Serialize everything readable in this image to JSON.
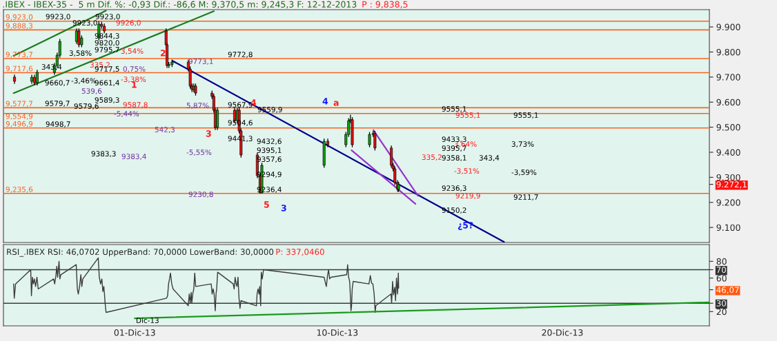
{
  "chart_data": [
    {
      "type": "candlestick",
      "title": ".IBEX - IBEX-35 -  5 m Dif. %: -0,93 Dif.: -86,6 M: 9,370,5 m: 9,245,3 F: 12-12-2013",
      "subtitle": "P : 9,838,5",
      "x": [
        "2013-11-25T15:48",
        "2013-11-26T10:11",
        "2013-11-26T13:05",
        "2013-11-26T15:58",
        "2013-11-27T10:22",
        "2013-11-27T13:15",
        "2013-11-27T16:08",
        "2013-11-28T09:56",
        "2013-11-28T12:29",
        "2013-11-28T15:23",
        "2013-11-29T09:46",
        "2013-11-29T12:39",
        "2013-11-29T15:33",
        "2013-12-02T09:26",
        "2013-12-02T10:27",
        "2013-12-02T12:24",
        "2013-12-02T15:48",
        "2013-12-03T09:10",
        "2013-12-03T11:08",
        "2013-12-03T13:05",
        "2013-12-03T14:57",
        "2013-12-03T16:54",
        "2013-12-04T10:22",
        "2013-12-04T12:19",
        "2013-12-04T13:51",
        "2013-12-04T16:08",
        "2013-12-05T10:32",
        "2013-12-05T13:25",
        "2013-12-05T15:23",
        "2013-12-05T17:20",
        "2013-12-06T10:42",
        "2013-12-06T13:41",
        "2013-12-06T15:33",
        "2013-12-09T09:56",
        "2013-12-09T13:51",
        "2013-12-10T09:10",
        "2013-12-10T12:04",
        "2013-12-10T14:01",
        "2013-12-10T15:58",
        "2013-12-11T10:22",
        "2013-12-11T14:11",
        "2013-12-11T16:08",
        "2013-12-12T09:36",
        "2013-12-12T11:33",
        "2013-12-12T13:25",
        "2013-12-12T16:19",
        "2013-12-12T17:20"
      ],
      "ohlc": [
        [
          9700,
          9710,
          9673,
          9683
        ],
        [
          9683,
          9709,
          9673,
          9699
        ],
        [
          9699,
          9709,
          9667,
          9677
        ],
        [
          9677,
          9729,
          9667,
          9719
        ],
        [
          9719,
          9756,
          9709,
          9746
        ],
        [
          9746,
          9797,
          9736,
          9787
        ],
        [
          9787,
          9852,
          9777,
          9842
        ],
        [
          9842,
          9894,
          9832,
          9884
        ],
        [
          9884,
          9894,
          9819,
          9829
        ],
        [
          9829,
          9866,
          9819,
          9856
        ],
        [
          9856,
          9923,
          9846,
          9911
        ],
        [
          9911,
          9921,
          9893,
          9903
        ],
        [
          9903,
          9913,
          9874,
          9884
        ],
        [
          9884,
          9894,
          9819,
          9829
        ],
        [
          9829,
          9839,
          9736,
          9746
        ],
        [
          9746,
          9760,
          9736,
          9750
        ],
        [
          9750,
          9770,
          9740,
          9760
        ],
        [
          9760,
          9770,
          9722,
          9732
        ],
        [
          9732,
          9742,
          9654,
          9664
        ],
        [
          9664,
          9674,
          9640,
          9650
        ],
        [
          9650,
          9674,
          9640,
          9664
        ],
        [
          9664,
          9674,
          9626,
          9636
        ],
        [
          9636,
          9646,
          9613,
          9623
        ],
        [
          9623,
          9633,
          9558,
          9568
        ],
        [
          9568,
          9578,
          9489,
          9499
        ],
        [
          9499,
          9578,
          9489,
          9568
        ],
        [
          9568,
          9578,
          9516,
          9526
        ],
        [
          9526,
          9578,
          9516,
          9568
        ],
        [
          9568,
          9578,
          9475,
          9485
        ],
        [
          9485,
          9495,
          9379,
          9389
        ],
        [
          9389,
          9399,
          9297,
          9307
        ],
        [
          9307,
          9317,
          9236,
          9238
        ],
        [
          9238,
          9358,
          9236,
          9348
        ],
        [
          9348,
          9454,
          9338,
          9444
        ],
        [
          9444,
          9454,
          9420,
          9430
        ],
        [
          9430,
          9481,
          9420,
          9471
        ],
        [
          9471,
          9536,
          9461,
          9526
        ],
        [
          9526,
          9550,
          9516,
          9530
        ],
        [
          9530,
          9540,
          9420,
          9430
        ],
        [
          9430,
          9481,
          9420,
          9471
        ],
        [
          9471,
          9485,
          9461,
          9475
        ],
        [
          9475,
          9485,
          9407,
          9417
        ],
        [
          9417,
          9427,
          9338,
          9348
        ],
        [
          9348,
          9358,
          9324,
          9334
        ],
        [
          9334,
          9344,
          9269,
          9279
        ],
        [
          9279,
          9289,
          9242,
          9252
        ],
        [
          9252,
          9282,
          9242,
          9272
        ]
      ],
      "series": [
        {
          "type": "line",
          "color": "#00008b",
          "x": [
            "2013-12-02T16:08",
            "2013-12-17T09:51"
          ],
          "values": [
            9765,
            9042
          ]
        },
        {
          "type": "line",
          "color": "#1e7a1e",
          "x": [
            "2013-11-25T14:47",
            "2013-11-29T17:15"
          ],
          "values": [
            9785,
            9965
          ]
        },
        {
          "type": "line",
          "color": "#1e7a1e",
          "x": [
            "2013-11-25T14:47",
            "2013-12-04T12:19"
          ],
          "values": [
            9636,
            9963
          ]
        },
        {
          "type": "line",
          "color": "#9932cc",
          "x": [
            "2013-12-10T15:12",
            "2013-12-13T11:18"
          ],
          "values": [
            9408,
            9194
          ]
        },
        {
          "type": "line",
          "color": "#9932cc",
          "x": [
            "2013-12-11T14:37",
            "2013-12-13T13:51"
          ],
          "values": [
            9488,
            9227
          ]
        }
      ],
      "ref_lines": [
        {
          "axis": "y",
          "value": 9923.0,
          "label": "9,923,0",
          "color": "#ff6020"
        },
        {
          "axis": "y",
          "value": 9888.3,
          "label": "9,888,3",
          "color": "#ff6020"
        },
        {
          "axis": "y",
          "value": 9773.7,
          "label": "9,773,7",
          "color": "#ff6020"
        },
        {
          "axis": "y",
          "value": 9717.6,
          "label": "9,717,6",
          "color": "#ff6020"
        },
        {
          "axis": "y",
          "value": 9577.7,
          "label": "9,577,7",
          "color": "#ff6020"
        },
        {
          "axis": "y",
          "value": 9554.9,
          "label": "9,554,9",
          "color": "#ff6020"
        },
        {
          "axis": "y",
          "value": 9496.9,
          "label": "9,496,9",
          "color": "#ff6020"
        },
        {
          "axis": "y",
          "value": 9235.6,
          "label": "9,235,6",
          "color": "#ff6020"
        }
      ],
      "annotations": [
        "9923,0",
        "9923,0",
        "9923,0",
        "9926,0",
        "9844,3",
        "9820,0",
        "9795,7",
        "3,58%",
        "3,54%",
        "335,2",
        "9717,5",
        "0,75%",
        "2",
        "9773,1",
        "9772,8",
        "343,4",
        "9660,7",
        "-3,46%",
        "9661,4",
        "-3,38%",
        "1",
        "539,6",
        "9579,7",
        "9579,6",
        "9589,3",
        "9587,8",
        "-5,44%",
        "5,87%",
        "9567,9",
        "4",
        "9559,9",
        "4",
        "a",
        "9504,6",
        "9498,7",
        "542,3",
        "3",
        "9441,3",
        "9432,6",
        "9395,1",
        "9357,6",
        "-5,55%",
        "9383,3",
        "9383,4",
        "9294,9",
        "9236,4",
        "9230,8",
        "5",
        "3",
        "9555,1",
        "9555,1",
        "9555,1",
        "9433,3",
        "3,64%",
        "3,73%",
        "9395,7",
        "335,2",
        "9358,1",
        "343,4",
        "-3,51%",
        "-3,59%",
        "9236,3",
        "9219,9",
        "9211,7",
        "9150,2",
        "¿5?"
      ],
      "xlim": [
        "2013-11-25T04:00",
        "2013-12-26T12:45"
      ],
      "ylim": [
        9040,
        9969
      ],
      "yticks": [
        {
          "value": 9100,
          "label": "9.100"
        },
        {
          "value": 9200,
          "label": "9.200"
        },
        {
          "value": 9300,
          "label": "9.300"
        },
        {
          "value": 9400,
          "label": "9.400"
        },
        {
          "value": 9500,
          "label": "9.500"
        },
        {
          "value": 9600,
          "label": "9.600"
        },
        {
          "value": 9700,
          "label": "9.700"
        },
        {
          "value": 9800,
          "label": "9.800"
        },
        {
          "value": 9900,
          "label": "9.900"
        },
        {
          "value": 9272.1,
          "label": "9.272,1"
        }
      ],
      "tick_labels": "y"
    },
    {
      "type": "line",
      "title": "RSI_.IBEX RSI: 46,0702 UpperBand: 70,0000 LowerBand: 30,0000",
      "subtitle": "P: 337,0460",
      "series": [
        {
          "type": "line",
          "color": "#3c3c3c",
          "x": [
            "2013-11-25T14:52",
            "2013-11-25T15:33",
            "2013-11-25T16:54",
            "2013-11-26T09:05",
            "2013-11-26T09:51",
            "2013-11-26T10:52",
            "2013-11-26T11:53",
            "2013-11-26T12:55",
            "2013-11-26T14:16",
            "2013-11-26T15:43",
            "2013-11-26T17:05",
            "2013-11-27T09:36",
            "2013-11-27T10:37",
            "2013-11-27T11:59",
            "2013-11-27T12:50",
            "2013-11-27T13:46",
            "2013-11-27T15:17",
            "2013-11-27T16:08",
            "2013-11-27T17:10",
            "2013-11-28T09:36",
            "2013-11-28T10:47",
            "2013-11-28T11:48",
            "2013-11-28T13:10",
            "2013-11-28T14:32",
            "2013-11-28T15:33",
            "2013-11-28T16:39",
            "2013-11-29T09:05",
            "2013-11-29T10:11",
            "2013-11-29T11:33",
            "2013-11-29T12:55",
            "2013-11-29T14:01",
            "2013-11-29T15:02",
            "2013-11-29T15:43",
            "2013-11-29T16:24",
            "2013-11-29T17:25",
            "2013-12-02T09:56",
            "2013-12-02T11:02",
            "2013-12-02T12:04",
            "2013-12-02T13:05",
            "2013-12-02T14:06",
            "2013-12-02T15:28",
            "2013-12-02T16:54",
            "2013-12-03T09:05",
            "2013-12-03T10:06",
            "2013-12-03T11:08",
            "2013-12-03T12:09",
            "2013-12-03T12:50",
            "2013-12-03T13:51",
            "2013-12-03T14:57",
            "2013-12-03T15:58",
            "2013-12-03T16:59",
            "2013-12-04T09:31",
            "2013-12-04T10:32",
            "2013-12-04T11:38",
            "2013-12-04T12:39",
            "2013-12-04T13:51",
            "2013-12-04T14:42",
            "2013-12-04T15:23",
            "2013-12-04T16:24",
            "2013-12-05T09:00",
            "2013-12-05T10:01",
            "2013-12-05T11:02",
            "2013-12-05T12:04",
            "2013-12-05T13:05",
            "2013-12-05T14:06",
            "2013-12-05T15:12",
            "2013-12-05T16:14",
            "2013-12-05T17:15",
            "2013-12-06T09:46",
            "2013-12-06T10:27",
            "2013-12-06T11:28",
            "2013-12-06T12:34",
            "2013-12-06T13:15",
            "2013-12-06T14:16",
            "2013-12-06T14:57",
            "2013-12-06T15:58",
            "2013-12-06T17:20",
            "2013-12-09T09:56",
            "2013-12-09T10:57",
            "2013-12-09T12:19",
            "2013-12-09T13:35",
            "2013-12-09T14:42",
            "2013-12-09T15:48",
            "2013-12-09T17:10",
            "2013-12-10T10:01",
            "2013-12-10T11:02",
            "2013-12-10T12:04",
            "2013-12-10T13:10",
            "2013-12-10T13:51",
            "2013-12-10T14:32",
            "2013-12-10T15:12",
            "2013-12-10T15:53",
            "2013-12-10T16:54",
            "2013-12-11T09:46",
            "2013-12-11T11:13",
            "2013-12-11T12:34",
            "2013-12-11T13:56",
            "2013-12-11T15:17",
            "2013-12-11T16:24",
            "2013-12-11T17:05",
            "2013-12-12T09:15",
            "2013-12-12T09:56",
            "2013-12-12T10:57",
            "2013-12-12T11:59",
            "2013-12-12T13:20",
            "2013-12-12T14:06",
            "2013-12-12T15:07",
            "2013-12-12T16:14",
            "2013-12-12T17:05",
            "2013-12-12T17:25"
          ],
          "values": [
            53,
            36,
            53,
            70,
            39,
            61,
            53,
            59,
            50,
            61,
            47,
            59,
            53,
            63,
            74,
            61,
            80,
            59,
            64,
            76,
            47,
            41,
            50,
            64,
            50,
            59,
            84,
            61,
            53,
            59,
            44,
            50,
            41,
            30,
            19,
            36,
            39,
            53,
            59,
            66,
            53,
            47,
            27,
            41,
            30,
            43,
            30,
            41,
            47,
            66,
            50,
            53,
            41,
            47,
            41,
            21,
            41,
            47,
            67,
            53,
            47,
            61,
            53,
            50,
            61,
            36,
            24,
            33,
            27,
            41,
            47,
            41,
            50,
            27,
            67,
            59,
            70,
            61,
            56,
            50,
            63,
            70,
            59,
            61,
            64,
            76,
            61,
            56,
            41,
            21,
            27,
            47,
            56,
            53,
            63,
            54,
            53,
            41,
            19,
            27,
            41,
            30,
            56,
            40,
            49,
            33,
            60,
            41,
            66,
            48
          ]
        },
        {
          "type": "line",
          "color": "#1a9a1a",
          "x": [
            "2013-12-01T00:00",
            "2013-12-26T12:45"
          ],
          "values": [
            12,
            31
          ]
        }
      ],
      "ref_lines": [
        {
          "axis": "y",
          "value": 70,
          "color": "#3c3c3c"
        },
        {
          "axis": "y",
          "value": 30,
          "color": "#3c3c3c"
        }
      ],
      "annotations": [
        "Dic-13"
      ],
      "xlim": [
        "2013-11-25T04:00",
        "2013-12-26T12:45"
      ],
      "ylim": [
        3,
        100
      ],
      "xticks": [
        {
          "value": "2013-12-01",
          "label": "01-Dic-13"
        },
        {
          "value": "2013-12-10",
          "label": "10-Dic-13"
        },
        {
          "value": "2013-12-20",
          "label": "20-Dic-13"
        }
      ],
      "yticks": [
        20,
        60,
        80,
        70,
        30,
        {
          "value": 46.07,
          "label": "46,07"
        }
      ]
    }
  ]
}
